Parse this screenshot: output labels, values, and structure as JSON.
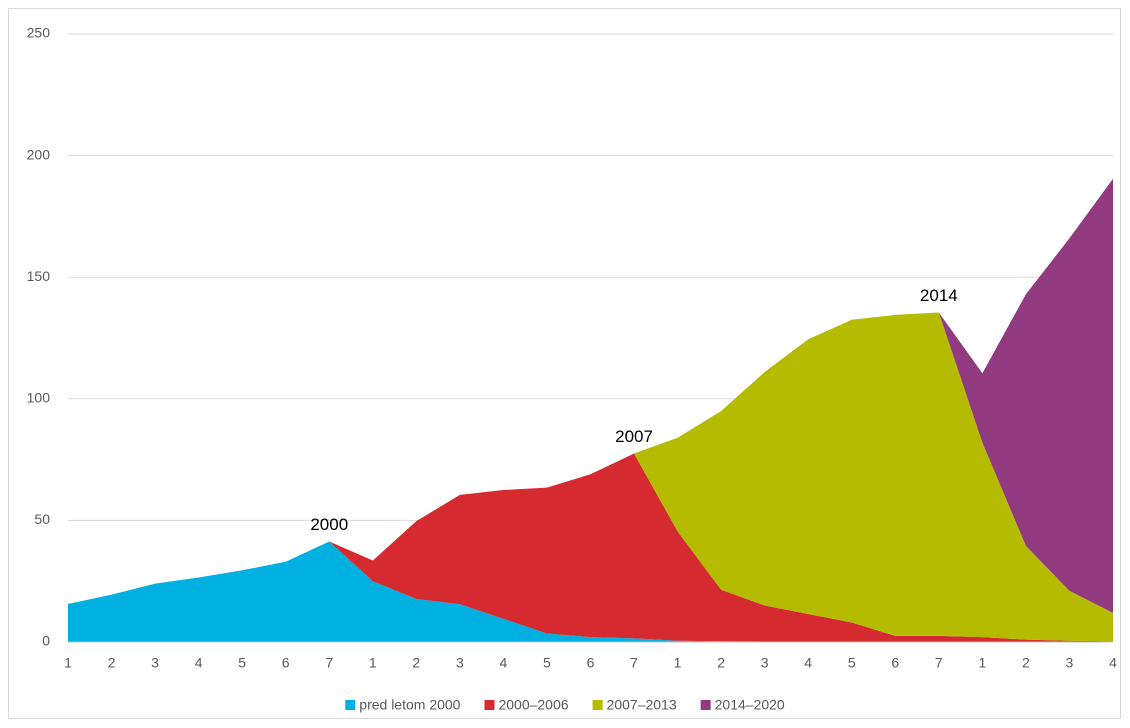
{
  "chart_data": {
    "type": "stacked_area",
    "categories": [
      "1",
      "2",
      "3",
      "4",
      "5",
      "6",
      "7",
      "1",
      "2",
      "3",
      "4",
      "5",
      "6",
      "7",
      "1",
      "2",
      "3",
      "4",
      "5",
      "6",
      "7",
      "1",
      "2",
      "3",
      "4"
    ],
    "series": [
      {
        "name": "pred letom 2000",
        "color": "#00b0e0",
        "values": [
          15.6,
          19.5,
          24,
          26.5,
          29.5,
          33,
          41.3,
          25,
          17.7,
          15.5,
          9.5,
          3.5,
          2,
          1.5,
          0.5,
          0.3,
          0.2,
          0.2,
          0.1,
          0.1,
          0.1,
          0,
          0,
          0,
          0
        ]
      },
      {
        "name": "2000–2006",
        "color": "#d52b30",
        "values": [
          0,
          0,
          0,
          0,
          0,
          0,
          0,
          8.5,
          32,
          45,
          53,
          60,
          67,
          76,
          45,
          21.2,
          14.8,
          11.3,
          7.9,
          2.4,
          2.4,
          2,
          1,
          0.5,
          0.3
        ]
      },
      {
        "name": "2007–2013",
        "color": "#b5bc00",
        "values": [
          0,
          0,
          0,
          0,
          0,
          0,
          0,
          0,
          0,
          0,
          0,
          0,
          0,
          0,
          38.5,
          73.5,
          96,
          113,
          124.5,
          132,
          133,
          80,
          38.5,
          20.5,
          11.7
        ]
      },
      {
        "name": "2014–2020",
        "color": "#923a7f",
        "values": [
          0,
          0,
          0,
          0,
          0,
          0,
          0,
          0,
          0,
          0,
          0,
          0,
          0,
          0,
          0,
          0,
          0,
          0,
          0,
          0,
          0,
          28.5,
          103.5,
          145,
          178.5
        ]
      }
    ],
    "annotations": [
      "2000",
      "2007",
      "2014"
    ],
    "ylim": [
      0,
      250
    ],
    "yticks": [
      0,
      50,
      100,
      150,
      200,
      250
    ],
    "grid": true,
    "legend": "bottom"
  }
}
